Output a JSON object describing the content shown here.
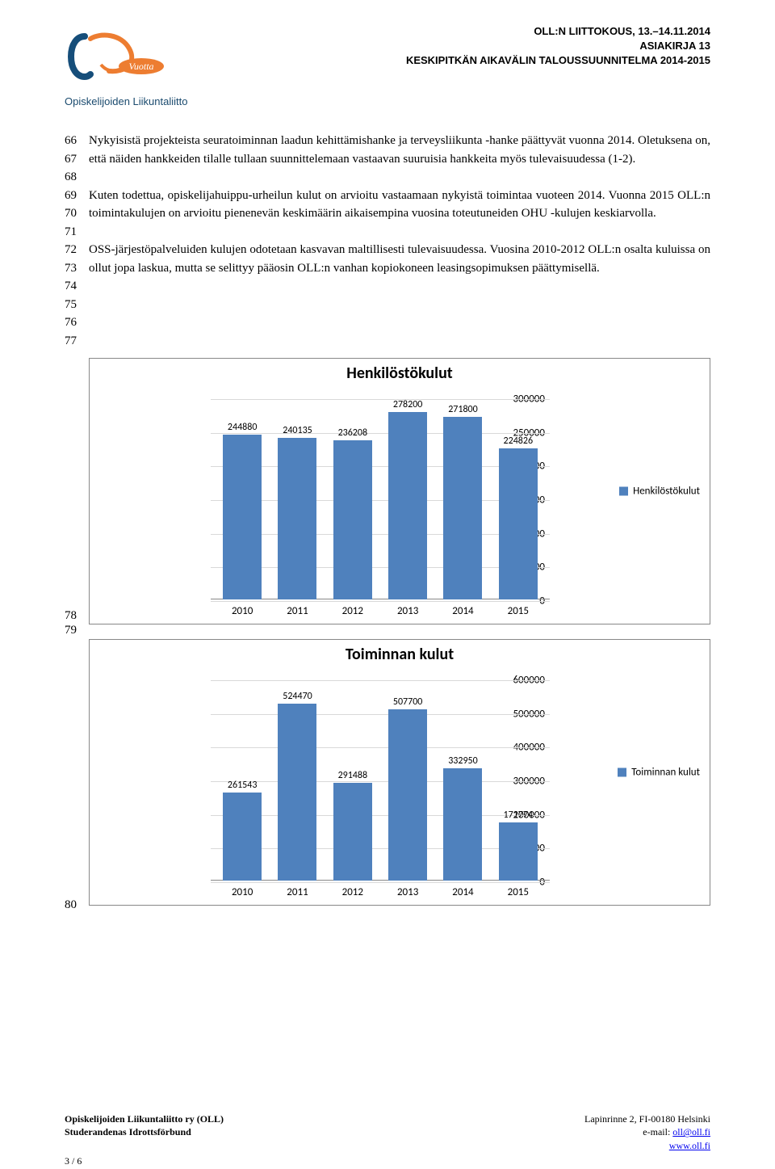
{
  "header": {
    "logo_caption": "Opiskelijoiden Liikuntaliitto",
    "line1": "OLL:N LIITTOKOUS, 13.–14.11.2014",
    "line2": "ASIAKIRJA 13",
    "line3": "KESKIPITKÄN AIKAVÄLIN TALOUSSUUNNITELMA 2014-2015"
  },
  "linenums_top": [
    "66",
    "67",
    "68",
    "69",
    "70",
    "71",
    "72",
    "73",
    "74",
    "75",
    "76",
    "77"
  ],
  "paras": {
    "p1": "Nykyisistä projekteista seuratoiminnan laadun kehittämishanke ja terveysliikunta -hanke päättyvät vuonna 2014. Oletuksena on, että näiden hankkeiden tilalle tullaan suunnittelemaan vastaavan suuruisia hankkeita myös tulevaisuudessa (1-2).",
    "p2": "Kuten todettua, opiskelijahuippu-urheilun kulut on arvioitu vastaamaan nykyistä toimintaa vuoteen 2014. Vuonna 2015 OLL:n toimintakulujen on arvioitu pienenevän keskimäärin aikaisempina vuosina toteutuneiden OHU -kulujen keskiarvolla.",
    "p3": "OSS-järjestöpalveluiden kulujen odotetaan kasvavan maltillisesti tulevaisuudessa. Vuosina 2010-2012 OLL:n osalta kuluissa on ollut jopa laskua, mutta se selittyy pääosin OLL:n vanhan kopiokoneen leasingsopimuksen päättymisellä."
  },
  "chart1": {
    "title": "Henkilöstökulut",
    "legend": "Henkilöstökulut",
    "color": "#4f81bd",
    "grid_color": "#d9d9d9",
    "ymax": 300000,
    "yticks": [
      0,
      50000,
      100000,
      150000,
      200000,
      250000,
      300000
    ],
    "categories": [
      "2010",
      "2011",
      "2012",
      "2013",
      "2014",
      "2015"
    ],
    "values": [
      244880,
      240135,
      236208,
      278200,
      271800,
      224826
    ],
    "side_nums": [
      "78",
      "79"
    ]
  },
  "chart2": {
    "title": "Toiminnan kulut",
    "legend": "Toiminnan kulut",
    "color": "#4f81bd",
    "grid_color": "#d9d9d9",
    "ymax": 600000,
    "yticks": [
      0,
      100000,
      200000,
      300000,
      400000,
      500000,
      600000
    ],
    "categories": [
      "2010",
      "2011",
      "2012",
      "2013",
      "2014",
      "2015"
    ],
    "values": [
      261543,
      524470,
      291488,
      507700,
      332950,
      171774
    ],
    "side_nums": [
      "80"
    ]
  },
  "footer": {
    "left1": "Opiskelijoiden Liikuntaliitto ry (OLL)",
    "left2": "Studerandenas Idrottsförbund",
    "right1": "Lapinrinne 2, FI-00180 Helsinki",
    "right2_prefix": "e-mail: ",
    "right2_link": "oll@oll.fi",
    "right3": "www.oll.fi",
    "pagenum": "3 / 6"
  }
}
